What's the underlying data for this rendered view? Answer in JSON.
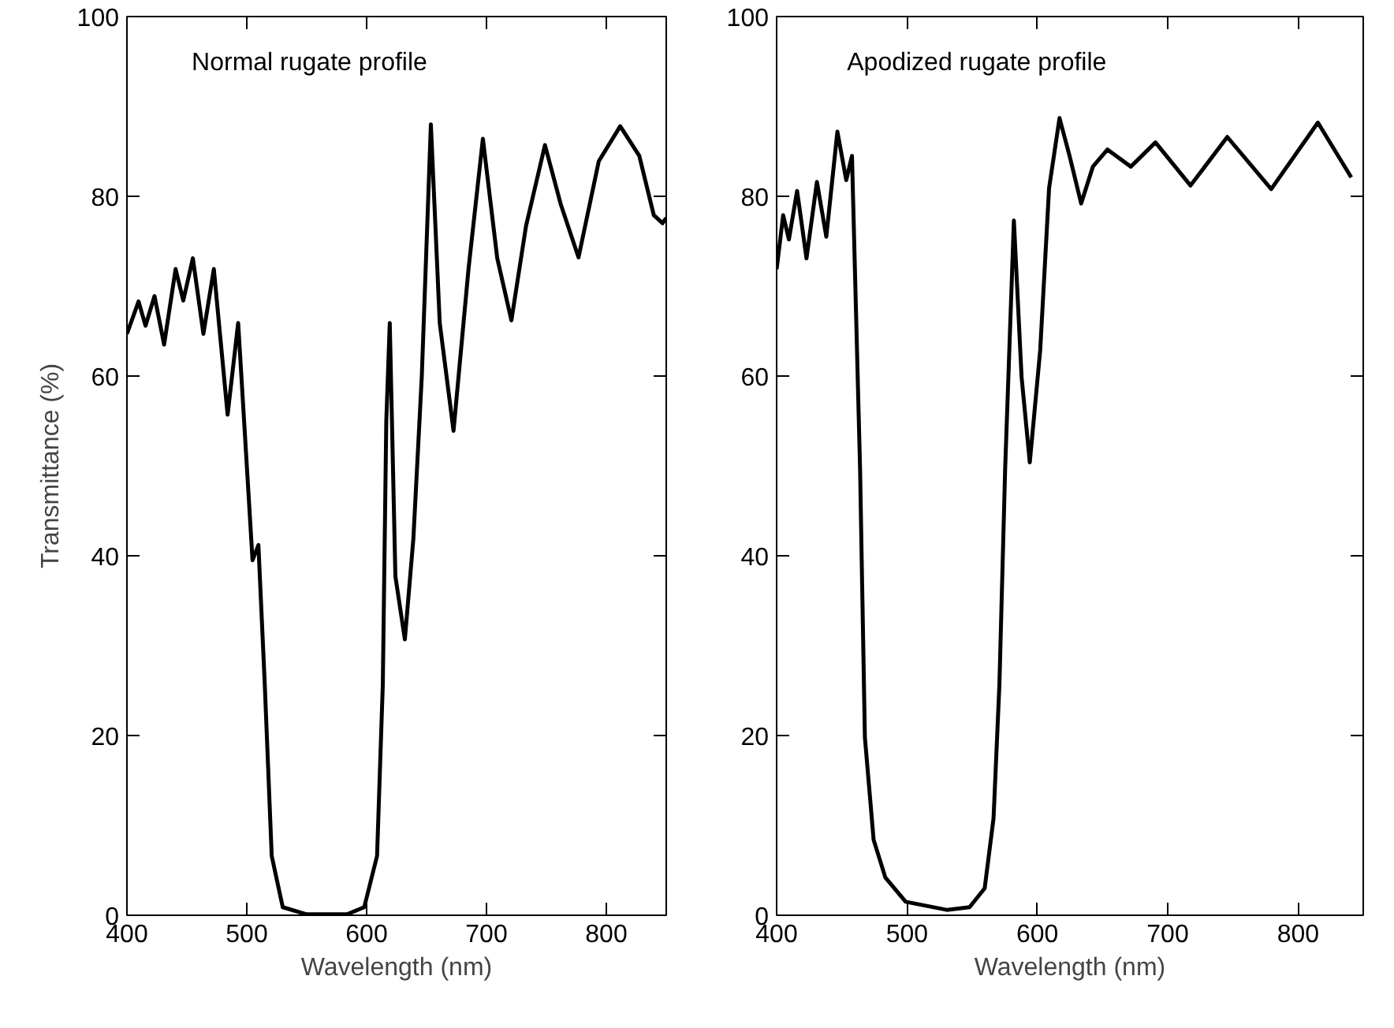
{
  "chart_data": [
    {
      "type": "line",
      "title": "Normal rugate profile",
      "xlabel": "Wavelength (nm)",
      "ylabel": "Transmittance (%)",
      "x": [
        400,
        409.7,
        415.5,
        423,
        431,
        440.6,
        447,
        455,
        463.8,
        472.5,
        484,
        492.8,
        504.8,
        509.7,
        515,
        520.8,
        530,
        550,
        583.6,
        598,
        608.7,
        613.5,
        616.4,
        619.3,
        624,
        631.9,
        639,
        646,
        653.6,
        661,
        672.5,
        685,
        697,
        709,
        720.8,
        733,
        748.8,
        762,
        776.8,
        793.7,
        811.6,
        827.5,
        839.6,
        846.9,
        850
      ],
      "series": [
        {
          "color": "#000000",
          "values": [
            64.7,
            68.3,
            65.6,
            68.9,
            63.5,
            71.9,
            68.4,
            73.1,
            64.7,
            71.9,
            55.7,
            65.9,
            39.5,
            41.2,
            25.7,
            6.6,
            0.9,
            0.1,
            0.1,
            0.9,
            6.6,
            25.7,
            55,
            65.9,
            37.7,
            30.7,
            41.9,
            59.9,
            88.0,
            65.9,
            53.9,
            71.9,
            86.4,
            73.1,
            66.2,
            76.7,
            85.7,
            79.1,
            73.2,
            83.9,
            87.8,
            84.5,
            77.9,
            77.0,
            77.6
          ]
        }
      ],
      "xlim": [
        400,
        850
      ],
      "ylim": [
        0,
        100
      ],
      "xticks": [
        400,
        500,
        600,
        700,
        800
      ],
      "yticks": [
        0,
        20,
        40,
        60,
        80,
        100
      ],
      "grid": false,
      "line_style": "solid"
    },
    {
      "type": "line",
      "title": "Apodized rugate profile",
      "xlabel": "Wavelength (nm)",
      "x": [
        400,
        405,
        409.4,
        415.7,
        422.9,
        430.9,
        438.1,
        446.6,
        453.4,
        457.8,
        464,
        467.7,
        474.4,
        483.4,
        499,
        530.5,
        548,
        559.6,
        566.4,
        570.9,
        575.3,
        582,
        587.9,
        594.2,
        602.2,
        609,
        617,
        624.7,
        633.6,
        642.6,
        653.8,
        671.7,
        690.6,
        717.5,
        745.7,
        779.4,
        815.2,
        840.8
      ],
      "series": [
        {
          "color": "#000000",
          "values": [
            71.9,
            77.9,
            75.2,
            80.6,
            73.1,
            81.6,
            75.5,
            87.2,
            81.8,
            84.5,
            49.7,
            19.8,
            8.4,
            4.2,
            1.5,
            0.6,
            0.9,
            3.0,
            10.8,
            25.7,
            49.7,
            77.3,
            59.9,
            50.4,
            62.9,
            80.9,
            88.7,
            84.5,
            79.2,
            83.3,
            85.2,
            83.3,
            86.0,
            81.2,
            86.6,
            80.8,
            88.2,
            82.1
          ]
        }
      ],
      "xlim": [
        400,
        850
      ],
      "ylim": [
        0,
        100
      ],
      "xticks": [
        400,
        500,
        600,
        700,
        800
      ],
      "yticks": [
        0,
        20,
        40,
        60,
        80,
        100
      ],
      "grid": false,
      "line_style": "solid"
    }
  ]
}
